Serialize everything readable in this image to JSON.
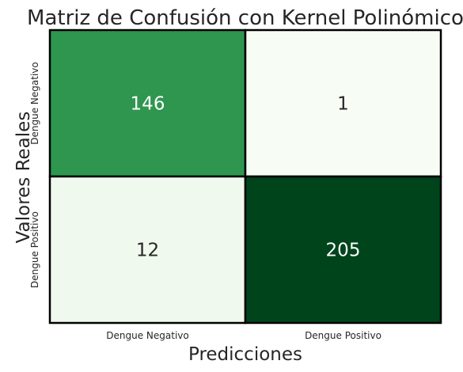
{
  "chart_data": {
    "type": "heatmap",
    "title": "Matriz de Confusión con Kernel Polinómico",
    "xlabel": "Predicciones",
    "ylabel": "Valores Reales",
    "x_categories": [
      "Dengue Negativo",
      "Dengue Positivo"
    ],
    "y_categories": [
      "Dengue Negativo",
      "Dengue Positivo"
    ],
    "values": [
      [
        146,
        1
      ],
      [
        12,
        205
      ]
    ],
    "colormap": "Greens",
    "colorbar": false,
    "cell_colors": [
      [
        "#2e964f",
        "#f7fcf5"
      ],
      [
        "#f0f9ed",
        "#00441b"
      ]
    ],
    "annotation_colors": [
      [
        "#ffffff",
        "#262626"
      ],
      [
        "#262626",
        "#ffffff"
      ]
    ],
    "cell_border_color": "#000000",
    "text_color": "#262626"
  }
}
